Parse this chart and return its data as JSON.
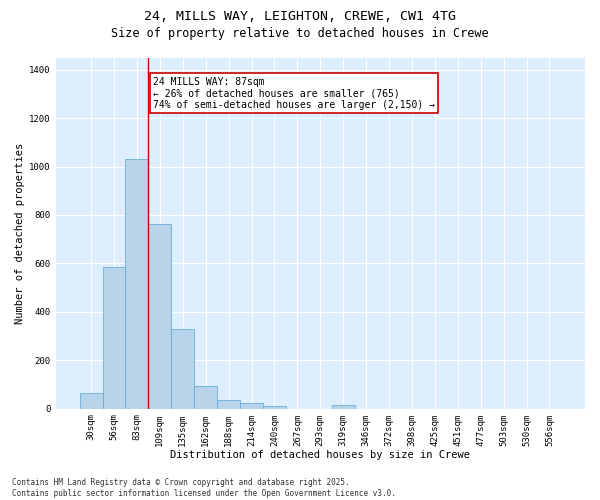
{
  "title_line1": "24, MILLS WAY, LEIGHTON, CREWE, CW1 4TG",
  "title_line2": "Size of property relative to detached houses in Crewe",
  "xlabel": "Distribution of detached houses by size in Crewe",
  "ylabel": "Number of detached properties",
  "categories": [
    "30sqm",
    "56sqm",
    "83sqm",
    "109sqm",
    "135sqm",
    "162sqm",
    "188sqm",
    "214sqm",
    "240sqm",
    "267sqm",
    "293sqm",
    "319sqm",
    "346sqm",
    "372sqm",
    "398sqm",
    "425sqm",
    "451sqm",
    "477sqm",
    "503sqm",
    "530sqm",
    "556sqm"
  ],
  "values": [
    65,
    585,
    1030,
    762,
    330,
    95,
    38,
    22,
    12,
    0,
    0,
    14,
    0,
    0,
    0,
    0,
    0,
    0,
    0,
    0,
    0
  ],
  "bar_color": "#b8d4ea",
  "bar_edge_color": "#6aaed6",
  "fig_background_color": "#ffffff",
  "ax_background_color": "#ddeeff",
  "grid_color": "#ffffff",
  "vline_x": 2.5,
  "vline_color": "#cc0000",
  "annotation_text": "24 MILLS WAY: 87sqm\n← 26% of detached houses are smaller (765)\n74% of semi-detached houses are larger (2,150) →",
  "annotation_box_color": "#cc0000",
  "annotation_bg": "#ffffff",
  "ylim": [
    0,
    1450
  ],
  "yticks": [
    0,
    200,
    400,
    600,
    800,
    1000,
    1200,
    1400
  ],
  "footnote": "Contains HM Land Registry data © Crown copyright and database right 2025.\nContains public sector information licensed under the Open Government Licence v3.0.",
  "title_fontsize": 9.5,
  "subtitle_fontsize": 8.5,
  "label_fontsize": 7.5,
  "tick_fontsize": 6.5,
  "annotation_fontsize": 7,
  "footnote_fontsize": 5.5
}
